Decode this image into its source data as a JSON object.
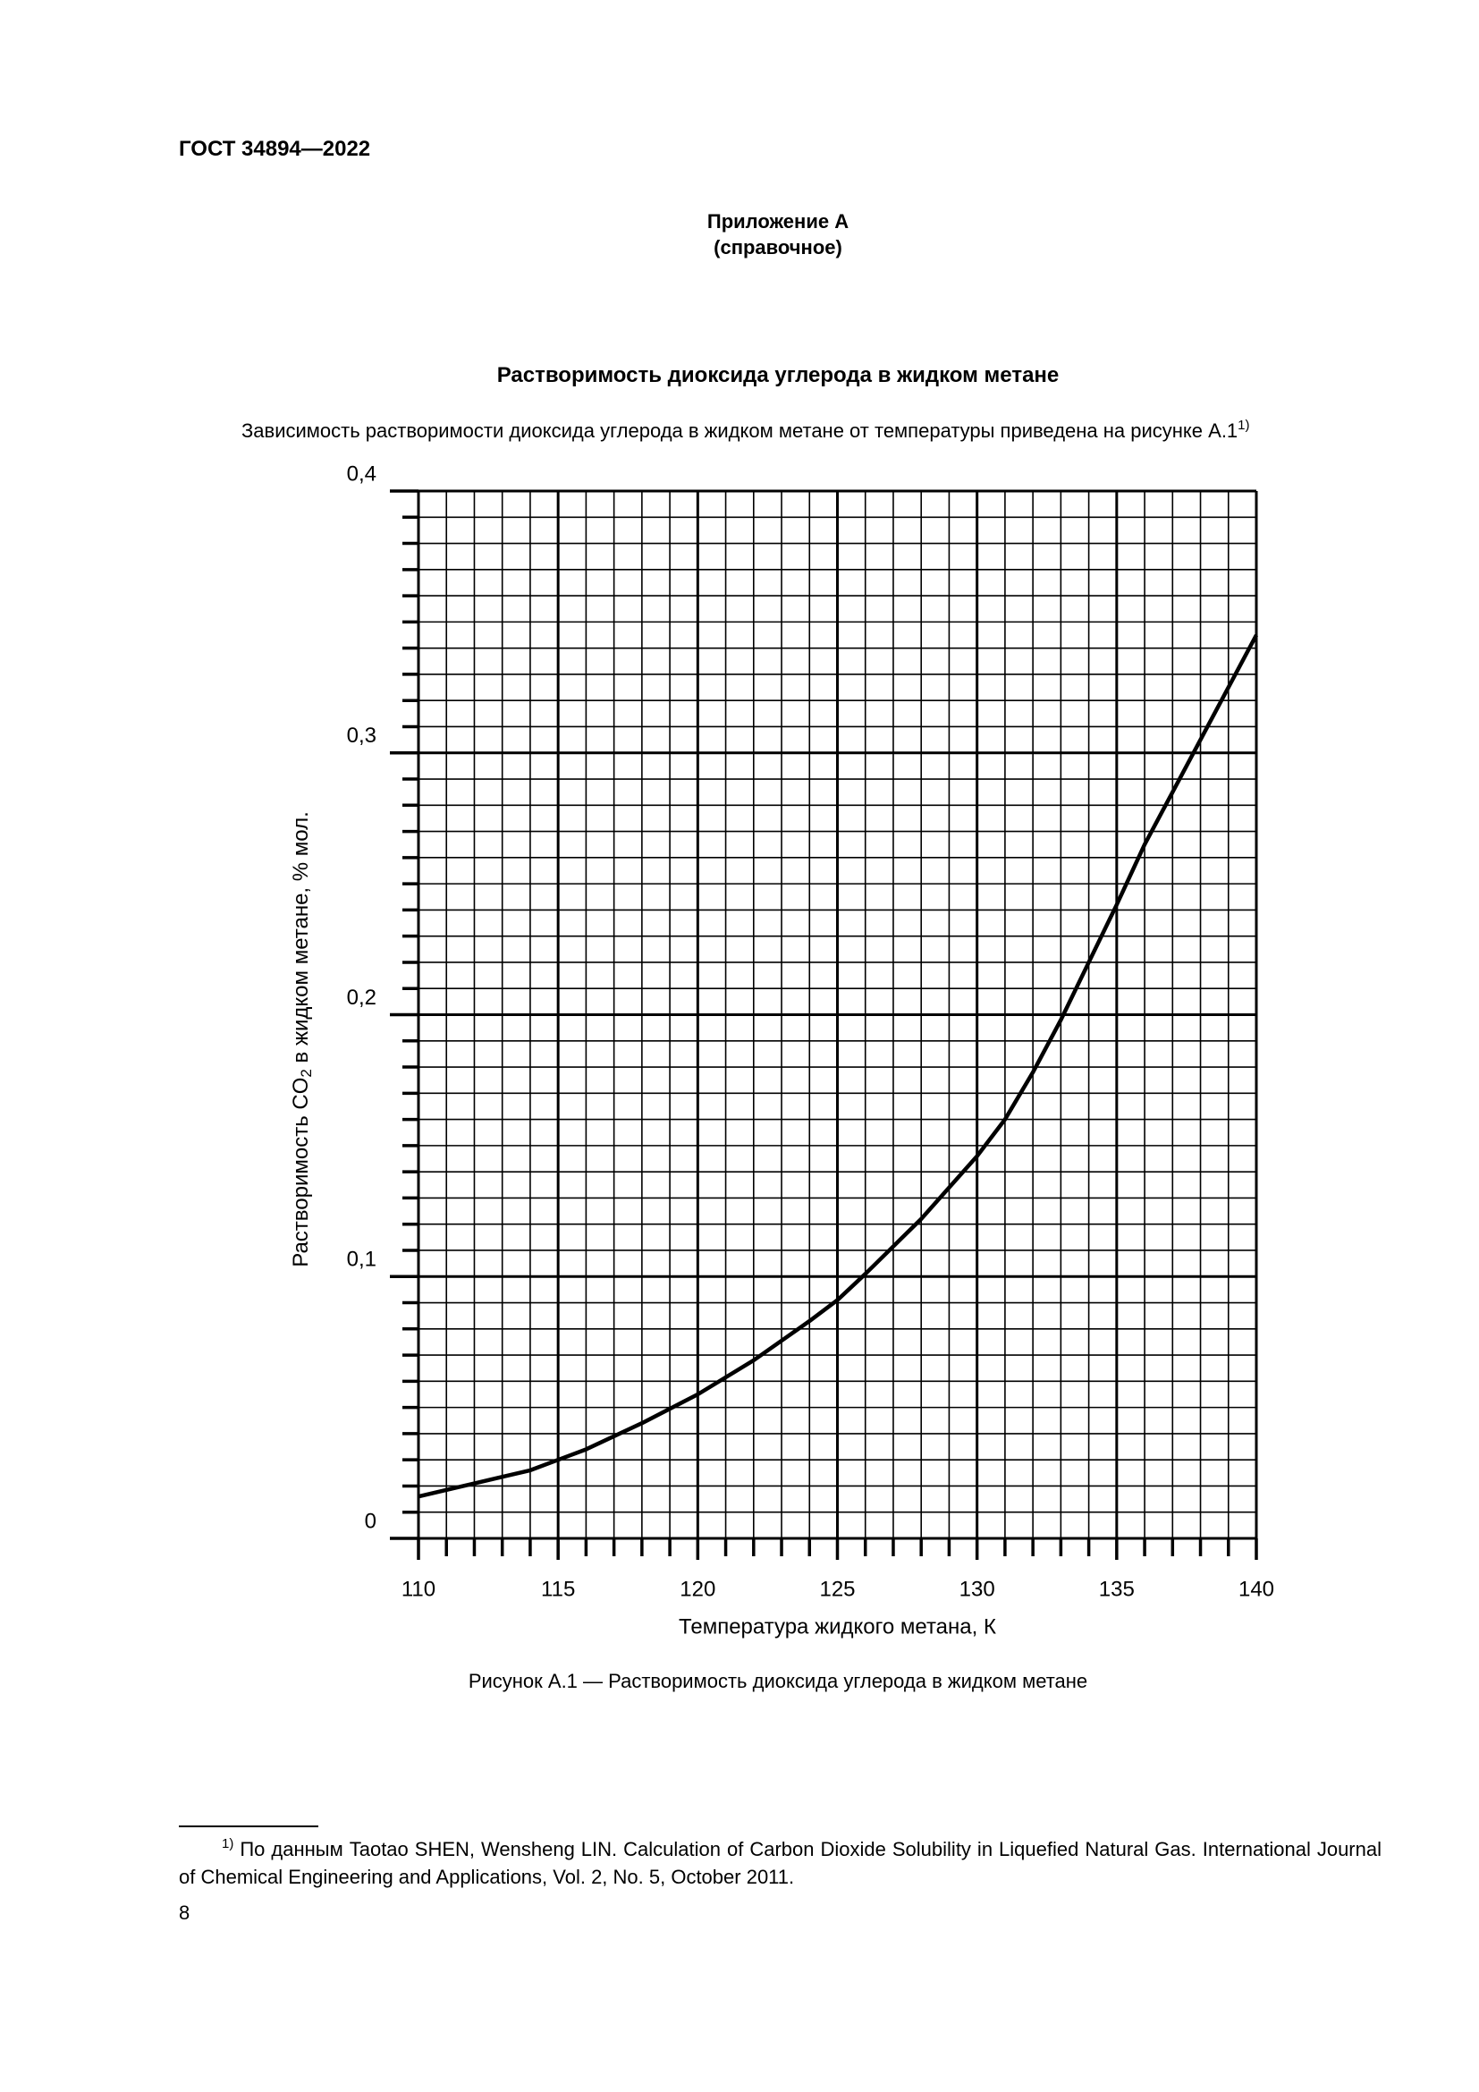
{
  "header": {
    "doc_id": "ГОСТ 34894—2022",
    "appendix": "Приложение А",
    "appendix_kind": "(справочное)"
  },
  "section_title": "Растворимость диоксида углерода в жидком метане",
  "paragraph": {
    "text": "Зависимость растворимости диоксида углерода в жидком метане от температуры приведена на рисунке А.1",
    "footnote_ref": "1)"
  },
  "chart_data": {
    "type": "line",
    "xlabel": "Температура жидкого метана, К",
    "ylabel": {
      "before": "Растворимость CO",
      "subscript": "2",
      "after": " в жидком метане, % мол."
    },
    "x": [
      110,
      112,
      114,
      115,
      116,
      118,
      120,
      122,
      124,
      125,
      126,
      128,
      130,
      131,
      132,
      133,
      134,
      135,
      136,
      137,
      138,
      139,
      140
    ],
    "series": [
      {
        "color": "#000000",
        "values": [
          0.016,
          0.021,
          0.026,
          0.03,
          0.034,
          0.044,
          0.055,
          0.068,
          0.083,
          0.091,
          0.101,
          0.122,
          0.146,
          0.16,
          0.178,
          0.198,
          0.22,
          0.242,
          0.265,
          0.285,
          0.305,
          0.325,
          0.345
        ]
      }
    ],
    "xlim": [
      110,
      140
    ],
    "ylim": [
      0,
      0.4
    ],
    "xticks": [
      110,
      115,
      120,
      125,
      130,
      135,
      140
    ],
    "yticks": [
      0,
      {
        "value": 0.1,
        "label": "0,1"
      },
      {
        "value": 0.2,
        "label": "0,2"
      },
      {
        "value": 0.3,
        "label": "0,3"
      },
      {
        "value": 0.4,
        "label": "0,4"
      }
    ],
    "xminorticks": [
      111,
      112,
      113,
      114,
      116,
      117,
      118,
      119,
      121,
      122,
      123,
      124,
      126,
      127,
      128,
      129,
      131,
      132,
      133,
      134,
      136,
      137,
      138,
      139
    ],
    "yminorticks": [
      0.01,
      0.02,
      0.03,
      0.04,
      0.05,
      0.06,
      0.07,
      0.08,
      0.09,
      0.11,
      0.12,
      0.13,
      0.14,
      0.15,
      0.16,
      0.17,
      0.18,
      0.19,
      0.21,
      0.22,
      0.23,
      0.24,
      0.25,
      0.26,
      0.27,
      0.28,
      0.29,
      0.31,
      0.32,
      0.33,
      0.34,
      0.35,
      0.36,
      0.37,
      0.38,
      0.39
    ],
    "grid": true
  },
  "caption": "Рисунок А.1 — Растворимость диоксида углерода в жидком метане",
  "footnote": {
    "marker": "1)",
    "text": "По данным Taotao SHEN, Wensheng LIN. Calculation of Carbon Dioxide Solubility in Liquefied Natural Gas. International Journal of Chemical Engineering and Applications, Vol. 2, No. 5, October 2011."
  },
  "page_number": "8"
}
